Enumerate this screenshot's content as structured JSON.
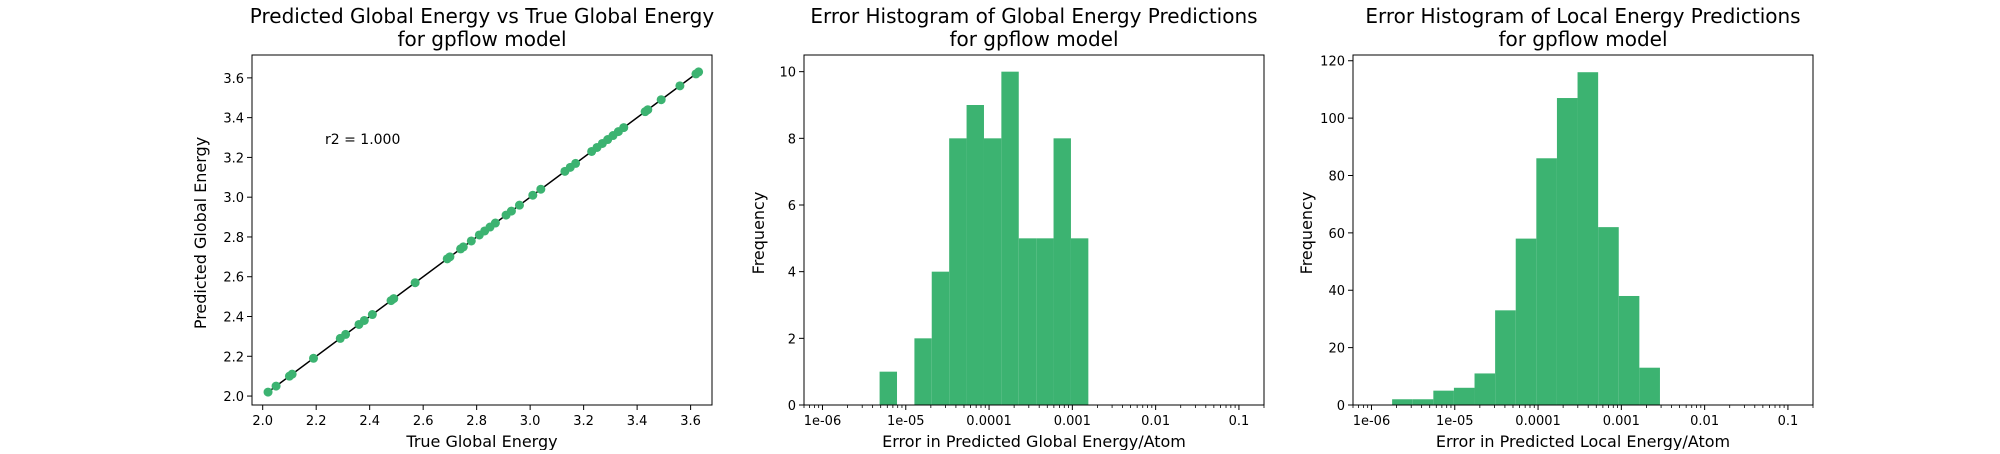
{
  "chart_data": [
    {
      "type": "scatter",
      "title": "Predicted Global Energy vs True Global Energy",
      "subtitle": "for gpflow model",
      "xlabel": "True Global Energy",
      "ylabel": "Predicted Global Energy",
      "xlim": [
        1.96,
        3.68
      ],
      "ylim": [
        1.955,
        3.715
      ],
      "xticks": [
        "2.0",
        "2.2",
        "2.4",
        "2.6",
        "2.8",
        "3.0",
        "3.2",
        "3.4",
        "3.6"
      ],
      "yticks": [
        "2.0",
        "2.2",
        "2.4",
        "2.6",
        "2.8",
        "3.0",
        "3.2",
        "3.4",
        "3.6"
      ],
      "annotation": "r2 = 1.000",
      "color": "#3cb371",
      "identity_line_color": "#000000",
      "points": [
        [
          2.02,
          2.02
        ],
        [
          2.05,
          2.05
        ],
        [
          2.1,
          2.1
        ],
        [
          2.11,
          2.11
        ],
        [
          2.19,
          2.19
        ],
        [
          2.29,
          2.29
        ],
        [
          2.31,
          2.31
        ],
        [
          2.36,
          2.36
        ],
        [
          2.38,
          2.38
        ],
        [
          2.41,
          2.41
        ],
        [
          2.48,
          2.48
        ],
        [
          2.49,
          2.49
        ],
        [
          2.57,
          2.57
        ],
        [
          2.69,
          2.69
        ],
        [
          2.7,
          2.7
        ],
        [
          2.74,
          2.74
        ],
        [
          2.75,
          2.75
        ],
        [
          2.78,
          2.78
        ],
        [
          2.81,
          2.81
        ],
        [
          2.83,
          2.83
        ],
        [
          2.85,
          2.85
        ],
        [
          2.87,
          2.87
        ],
        [
          2.91,
          2.91
        ],
        [
          2.93,
          2.93
        ],
        [
          2.96,
          2.96
        ],
        [
          3.01,
          3.01
        ],
        [
          3.04,
          3.04
        ],
        [
          3.13,
          3.13
        ],
        [
          3.15,
          3.15
        ],
        [
          3.17,
          3.17
        ],
        [
          3.23,
          3.23
        ],
        [
          3.25,
          3.25
        ],
        [
          3.27,
          3.27
        ],
        [
          3.29,
          3.29
        ],
        [
          3.31,
          3.31
        ],
        [
          3.33,
          3.33
        ],
        [
          3.35,
          3.35
        ],
        [
          3.43,
          3.43
        ],
        [
          3.44,
          3.44
        ],
        [
          3.49,
          3.49
        ],
        [
          3.56,
          3.56
        ],
        [
          3.62,
          3.62
        ],
        [
          3.63,
          3.63
        ]
      ]
    },
    {
      "type": "bar",
      "title": "Error Histogram of Global Energy Predictions",
      "subtitle": "for gpflow model",
      "xlabel": "Error in Predicted Global Energy/Atom",
      "ylabel": "Frequency",
      "x_scale": "log",
      "xlim": [
        6e-07,
        0.2
      ],
      "ylim": [
        0,
        10.5
      ],
      "xticks": [
        {
          "value": 1e-06,
          "label": "1e-06"
        },
        {
          "value": 1e-05,
          "label": "1e-05"
        },
        {
          "value": 0.0001,
          "label": "0.0001"
        },
        {
          "value": 0.001,
          "label": "0.001"
        },
        {
          "value": 0.01,
          "label": "0.01"
        },
        {
          "value": 0.1,
          "label": "0.1"
        }
      ],
      "yticks": [
        0,
        2,
        4,
        6,
        8,
        10
      ],
      "color": "#3cb371",
      "bin_edges": [
        3e-06,
        4.85e-06,
        7.85e-06,
        1.27e-05,
        2.05e-05,
        3.32e-05,
        5.37e-05,
        8.69e-05,
        0.0001405,
        0.0002273,
        0.0003677,
        0.0005947,
        0.000962,
        0.001556,
        0.002517
      ],
      "values": [
        0,
        1,
        0,
        2,
        4,
        8,
        9,
        8,
        10,
        5,
        5,
        8,
        5,
        0
      ]
    },
    {
      "type": "bar",
      "title": "Error Histogram of Local Energy Predictions",
      "subtitle": "for gpflow model",
      "xlabel": "Error in Predicted Local Energy/Atom",
      "ylabel": "Frequency",
      "x_scale": "log",
      "xlim": [
        6e-07,
        0.2
      ],
      "ylim": [
        0,
        122
      ],
      "xticks": [
        {
          "value": 1e-06,
          "label": "1e-06"
        },
        {
          "value": 1e-05,
          "label": "1e-05"
        },
        {
          "value": 0.0001,
          "label": "0.0001"
        },
        {
          "value": 0.001,
          "label": "0.001"
        },
        {
          "value": 0.01,
          "label": "0.01"
        },
        {
          "value": 0.1,
          "label": "0.1"
        }
      ],
      "yticks": [
        0,
        20,
        40,
        60,
        80,
        100,
        120
      ],
      "color": "#3cb371",
      "bin_edges": [
        1.77e-06,
        3.13e-06,
        5.53e-06,
        9.77e-06,
        1.727e-05,
        3.052e-05,
        5.395e-05,
        9.535e-05,
        0.00016853,
        0.0002979,
        0.0005265,
        0.0009306,
        0.0016448,
        0.0029072,
        0.0051384
      ],
      "values": [
        2,
        2,
        5,
        6,
        11,
        33,
        58,
        86,
        107,
        116,
        62,
        38,
        13,
        0
      ]
    }
  ]
}
